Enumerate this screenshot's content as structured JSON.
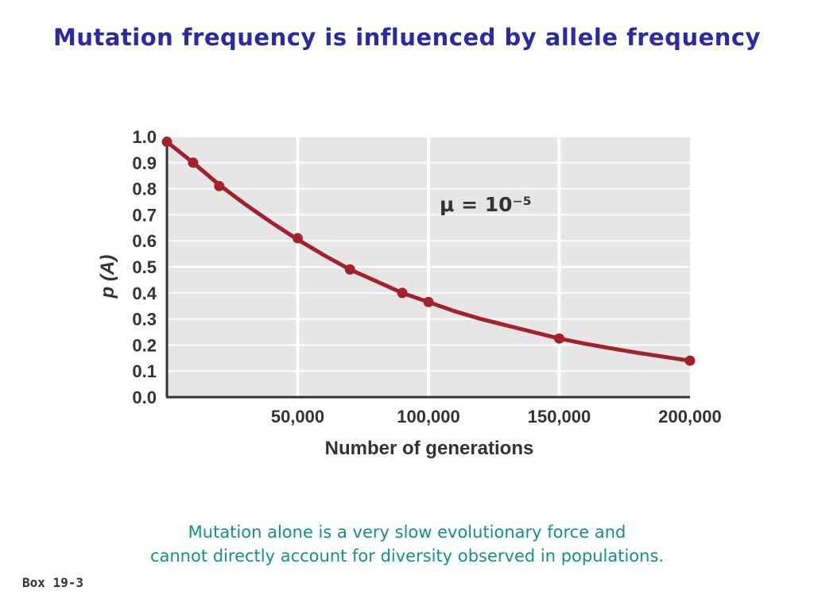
{
  "slide": {
    "title": "Mutation frequency is influenced by allele frequency",
    "caption_line1": "Mutation alone is a very slow evolutionary force and",
    "caption_line2": "cannot directly account for diversity observed in populations.",
    "box_label": "Box 19-3"
  },
  "colors": {
    "title": "#2a2aa6",
    "caption": "#12908a",
    "line": "#a3212a",
    "plot_background": "#e6e6e6",
    "grid": "#ffffff",
    "axis": "#333333"
  },
  "chart_data": {
    "type": "line",
    "title": "",
    "xlabel": "Number of generations",
    "ylabel": "p (A)",
    "annotation": "μ = 10⁻⁵",
    "xlim": [
      0,
      200000
    ],
    "ylim": [
      0,
      1.0
    ],
    "xticks": [
      50000,
      100000,
      150000,
      200000
    ],
    "xtick_labels": [
      "50,000",
      "100,000",
      "150,000",
      "200,000"
    ],
    "yticks": [
      0.0,
      0.1,
      0.2,
      0.3,
      0.4,
      0.5,
      0.6,
      0.7,
      0.8,
      0.9,
      1.0
    ],
    "ytick_labels": [
      "0.0",
      "0.1",
      "0.2",
      "0.3",
      "0.4",
      "0.5",
      "0.6",
      "0.7",
      "0.8",
      "0.9",
      "1.0"
    ],
    "grid": true,
    "legend": "none",
    "series": [
      {
        "x": [
          0,
          10000,
          20000,
          50000,
          70000,
          90000,
          100000,
          150000,
          200000
        ],
        "y": [
          0.98,
          0.9,
          0.81,
          0.61,
          0.49,
          0.4,
          0.365,
          0.225,
          0.14
        ]
      }
    ],
    "curve": {
      "x": [
        0,
        10000,
        20000,
        30000,
        40000,
        50000,
        60000,
        70000,
        80000,
        90000,
        100000,
        110000,
        120000,
        130000,
        140000,
        150000,
        160000,
        170000,
        180000,
        190000,
        200000
      ],
      "y": [
        0.98,
        0.9,
        0.815,
        0.74,
        0.67,
        0.605,
        0.545,
        0.49,
        0.445,
        0.4,
        0.365,
        0.33,
        0.3,
        0.275,
        0.25,
        0.225,
        0.205,
        0.187,
        0.17,
        0.155,
        0.14
      ]
    }
  }
}
